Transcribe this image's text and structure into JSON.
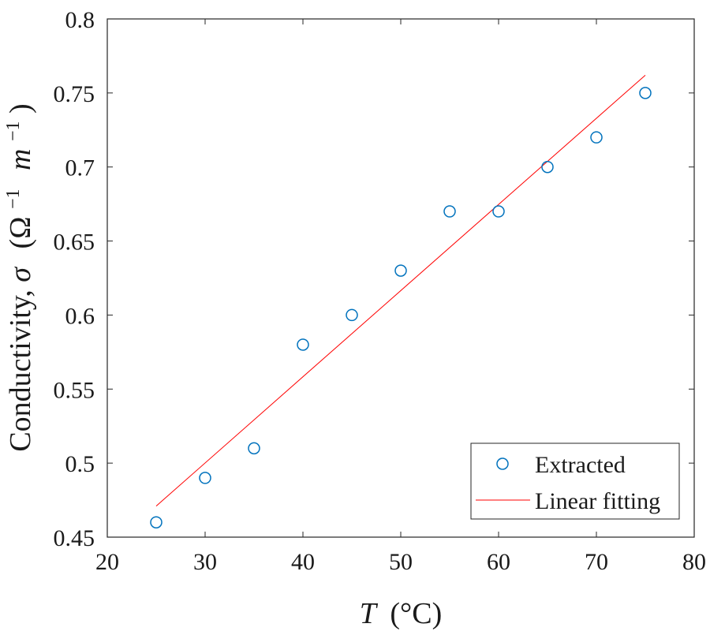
{
  "chart_data": {
    "type": "scatter",
    "title": "",
    "xlabel_symbol": "T",
    "xlabel_unit": "(°C)",
    "ylabel_prefix": "Conductivity, ",
    "ylabel_symbol": "σ",
    "ylabel_unit_open": "(Ω",
    "ylabel_exp1": "−1",
    "ylabel_unit_mid": "m",
    "ylabel_exp2": "−1",
    "ylabel_unit_close": ")",
    "xlim": [
      20,
      80
    ],
    "ylim": [
      0.45,
      0.8
    ],
    "x_ticks": [
      "20",
      "30",
      "40",
      "50",
      "60",
      "70",
      "80"
    ],
    "y_ticks": [
      "0.45",
      "0.5",
      "0.55",
      "0.6",
      "0.65",
      "0.7",
      "0.75",
      "0.8"
    ],
    "grid": false,
    "legend_position": "bottom-right",
    "series": [
      {
        "name": "Extracted",
        "style": "circle-marker",
        "color": "#0072BD",
        "x": [
          25,
          30,
          35,
          40,
          45,
          50,
          55,
          60,
          65,
          70,
          75
        ],
        "y": [
          0.46,
          0.49,
          0.51,
          0.58,
          0.6,
          0.63,
          0.67,
          0.67,
          0.7,
          0.72,
          0.75
        ]
      },
      {
        "name": "Linear fitting",
        "style": "line",
        "color": "#FF0000",
        "x": [
          25,
          75
        ],
        "y": [
          0.471,
          0.762
        ]
      }
    ]
  }
}
